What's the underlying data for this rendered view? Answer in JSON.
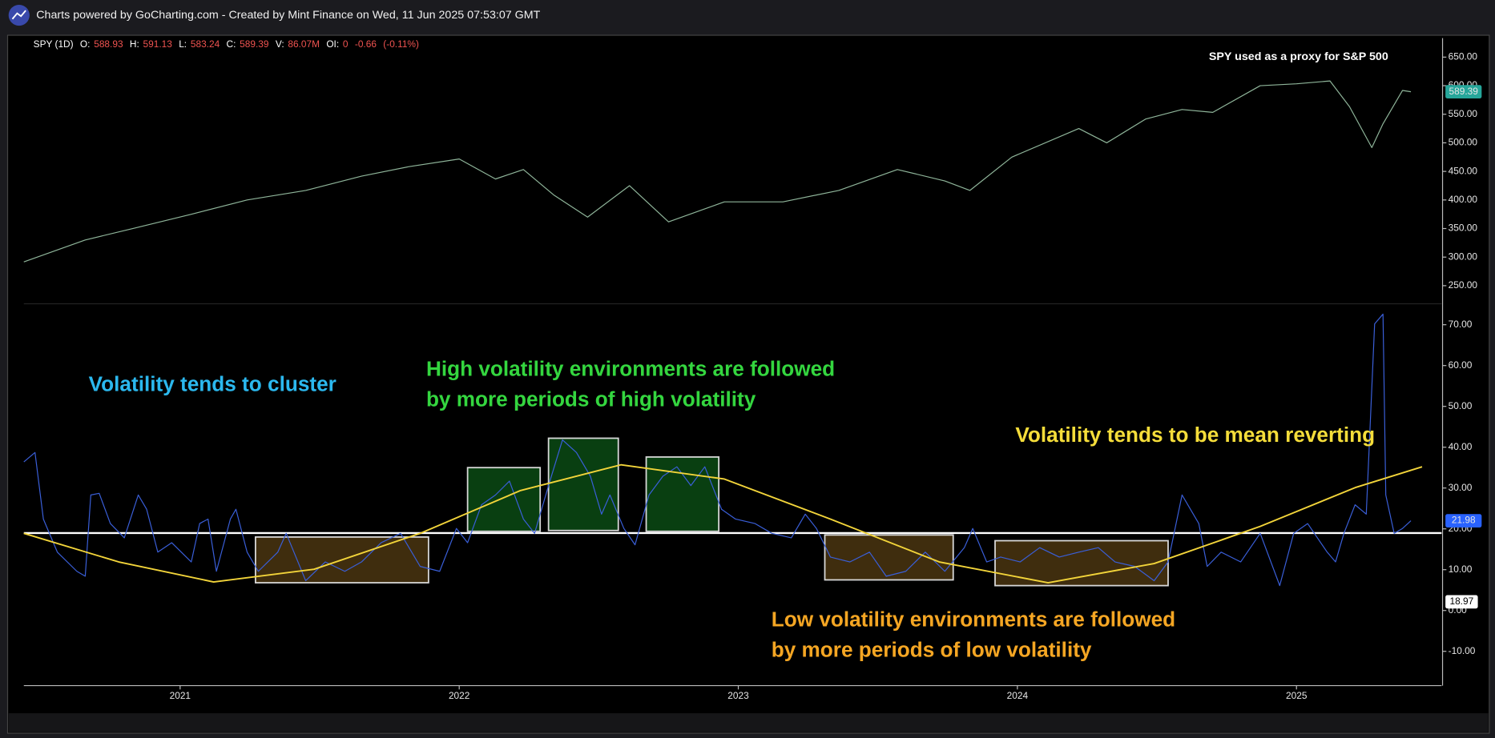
{
  "header": {
    "title": "Charts powered by GoCharting.com - Created by Mint Finance on Wed, 11 Jun 2025 07:53:07 GMT"
  },
  "legend": {
    "symbol": "SPY (1D)",
    "items": [
      {
        "key": "O:",
        "value": 588.93
      },
      {
        "key": "H:",
        "value": 591.13
      },
      {
        "key": "L:",
        "value": 583.24
      },
      {
        "key": "C:",
        "value": 589.39
      },
      {
        "key": "V:",
        "value": {
          "value": 86070000,
          "label": "86.07M"
        }
      },
      {
        "key": "OI:",
        "value": 0
      }
    ],
    "change": -0.66,
    "change_pct": {
      "value": -0.11,
      "label": "(-0.11%)"
    }
  },
  "chart_data": [
    {
      "type": "line",
      "annotation": "SPY used as a proxy for S&P 500",
      "xlim": [
        2020.44,
        2025.52
      ],
      "ylim": [
        220,
        683.3
      ],
      "yticks": [
        {
          "value": 650,
          "label": "650.00"
        },
        {
          "value": 600,
          "label": "600.00"
        },
        {
          "value": 550,
          "label": "550.00"
        },
        {
          "value": 500,
          "label": "500.00"
        },
        {
          "value": 450,
          "label": "450.00"
        },
        {
          "value": 400,
          "label": "400.00"
        },
        {
          "value": 350,
          "label": "350.00"
        },
        {
          "value": 300,
          "label": "300.00"
        },
        {
          "value": 250,
          "label": "250.00"
        }
      ],
      "label_color": "#26a69a",
      "x": [
        2020.44,
        2020.66,
        2020.83,
        2021.04,
        2021.24,
        2021.45,
        2021.65,
        2021.82,
        2022.0,
        2022.13,
        2022.23,
        2022.34,
        2022.46,
        2022.61,
        2022.75,
        2022.95,
        2023.16,
        2023.36,
        2023.57,
        2023.74,
        2023.83,
        2023.98,
        2024.22,
        2024.32,
        2024.46,
        2024.59,
        2024.7,
        2024.87,
        2025.0,
        2025.12,
        2025.19,
        2025.27,
        2025.31,
        2025.38,
        2025.41
      ],
      "series": [
        {
          "name": "SPY",
          "color": "#8fb59a",
          "values": [
            291.7,
            330,
            350,
            375,
            400,
            416.7,
            441.7,
            458.3,
            471.7,
            436.7,
            453.3,
            408.3,
            370,
            425,
            361.7,
            396.7,
            396.7,
            416.7,
            453.3,
            433.3,
            416.7,
            475,
            525,
            500,
            541.7,
            558.3,
            553.3,
            600,
            603.3,
            608.3,
            563.3,
            491.7,
            533.3,
            591.7,
            589.39
          ]
        }
      ]
    },
    {
      "type": "line",
      "xlim": [
        2020.44,
        2025.52
      ],
      "ylim": [
        -18.4,
        74.9
      ],
      "xticks": [
        2021,
        2022,
        2023,
        2024,
        2025
      ],
      "yticks": [
        {
          "value": 70,
          "label": "70.00"
        },
        {
          "value": 60,
          "label": "60.00"
        },
        {
          "value": 50,
          "label": "50.00"
        },
        {
          "value": 40,
          "label": "40.00"
        },
        {
          "value": 30,
          "label": "30.00"
        },
        {
          "value": 20,
          "label": "20.00"
        },
        {
          "value": 10,
          "label": "10.00"
        },
        {
          "value": 0,
          "label": "0.00"
        },
        {
          "value": -10,
          "label": "-10.00"
        }
      ],
      "label_color": "#2962ff",
      "x": [
        2020.44,
        2020.48,
        2020.51,
        2020.56,
        2020.63,
        2020.66,
        2020.68,
        2020.71,
        2020.75,
        2020.8,
        2020.85,
        2020.88,
        2020.92,
        2020.97,
        2021.04,
        2021.07,
        2021.1,
        2021.13,
        2021.18,
        2021.2,
        2021.24,
        2021.28,
        2021.35,
        2021.38,
        2021.45,
        2021.52,
        2021.59,
        2021.65,
        2021.72,
        2021.79,
        2021.86,
        2021.93,
        2021.99,
        2022.03,
        2022.08,
        2022.13,
        2022.18,
        2022.23,
        2022.27,
        2022.32,
        2022.37,
        2022.42,
        2022.47,
        2022.51,
        2022.54,
        2022.59,
        2022.63,
        2022.68,
        2022.73,
        2022.78,
        2022.83,
        2022.88,
        2022.94,
        2022.99,
        2023.06,
        2023.12,
        2023.19,
        2023.24,
        2023.28,
        2023.33,
        2023.4,
        2023.47,
        2023.53,
        2023.6,
        2023.67,
        2023.74,
        2023.81,
        2023.84,
        2023.89,
        2023.94,
        2024.01,
        2024.08,
        2024.15,
        2024.22,
        2024.29,
        2024.35,
        2024.42,
        2024.49,
        2024.54,
        2024.59,
        2024.65,
        2024.68,
        2024.73,
        2024.8,
        2024.87,
        2024.94,
        2024.99,
        2025.04,
        2025.11,
        2025.14,
        2025.17,
        2025.21,
        2025.25,
        2025.28,
        2025.31,
        2025.32,
        2025.35,
        2025.38,
        2025.41
      ],
      "series": [
        {
          "name": "Volatility",
          "color": "#3a5fd9",
          "values": [
            36.4,
            38.7,
            22.4,
            14.3,
            9.6,
            8.4,
            28.3,
            28.7,
            21.3,
            17.8,
            28.3,
            24.8,
            14.3,
            16.6,
            11.9,
            21.3,
            22.4,
            9.6,
            22.4,
            24.8,
            14.3,
            9.6,
            14.3,
            18.9,
            7.3,
            11.9,
            9.6,
            11.9,
            16.6,
            18.9,
            10.8,
            9.6,
            20.1,
            16.6,
            25.9,
            28.3,
            31.7,
            22.4,
            18.9,
            30.6,
            41.8,
            38.7,
            32.9,
            23.6,
            28.3,
            20.1,
            16.1,
            28.3,
            32.9,
            35.2,
            30.6,
            35.2,
            24.8,
            22.4,
            21.3,
            18.9,
            17.8,
            23.6,
            20.1,
            13.1,
            11.9,
            14.3,
            8.4,
            9.6,
            14.3,
            9.6,
            15.4,
            20.1,
            11.9,
            13.1,
            11.9,
            15.4,
            13.1,
            14.3,
            15.4,
            11.9,
            10.8,
            7.3,
            11.9,
            28.3,
            21.3,
            10.8,
            14.3,
            11.9,
            18.9,
            6.1,
            18.9,
            21.3,
            14.3,
            11.9,
            18.9,
            25.9,
            23.6,
            70.2,
            72.6,
            28.3,
            18.9,
            20.1,
            21.98
          ]
        }
      ],
      "mean_curve": {
        "color": "#f2d43a",
        "x": [
          2020.44,
          2020.78,
          2021.12,
          2021.48,
          2021.86,
          2022.22,
          2022.58,
          2022.95,
          2023.33,
          2023.72,
          2024.11,
          2024.49,
          2024.87,
          2025.21,
          2025.45
        ],
        "values": [
          18.9,
          11.9,
          7.0,
          10.1,
          18.9,
          29.4,
          35.7,
          32.2,
          22.4,
          11.9,
          6.8,
          11.5,
          20.6,
          30.1,
          35.2
        ]
      },
      "reference_line": {
        "value": 18.97,
        "color": "#ffffff"
      },
      "zones": [
        {
          "x": [
            2021.27,
            2021.89
          ],
          "y": [
            6.8,
            18.0
          ],
          "fill": "#4a3510"
        },
        {
          "x": [
            2022.03,
            2022.29
          ],
          "y": [
            19.4,
            35.0
          ],
          "fill": "#0b4a14"
        },
        {
          "x": [
            2022.32,
            2022.57
          ],
          "y": [
            19.6,
            42.2
          ],
          "fill": "#0b4a14"
        },
        {
          "x": [
            2022.67,
            2022.93
          ],
          "y": [
            19.4,
            37.6
          ],
          "fill": "#0b4a14"
        },
        {
          "x": [
            2023.31,
            2023.77
          ],
          "y": [
            7.5,
            18.5
          ],
          "fill": "#4a3510"
        },
        {
          "x": [
            2023.92,
            2024.54
          ],
          "y": [
            6.1,
            17.1
          ],
          "fill": "#4a3510"
        }
      ],
      "annotations": [
        {
          "color": "#2bb8ee",
          "lines": [
            "Volatility tends to cluster"
          ]
        },
        {
          "color": "#34d63f",
          "lines": [
            "High volatility environments are followed",
            "by more periods of high volatility"
          ]
        },
        {
          "color": "#f5dd3a",
          "lines": [
            "Volatility tends to be mean reverting"
          ]
        },
        {
          "color": "#f5a623",
          "lines": [
            "Low volatility environments are followed",
            "by more periods of low volatility"
          ]
        }
      ]
    }
  ]
}
